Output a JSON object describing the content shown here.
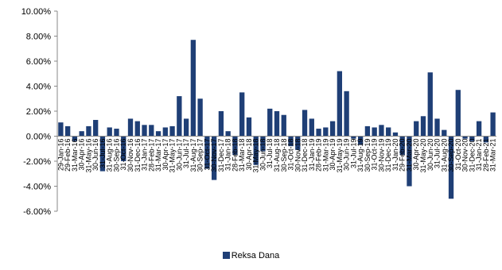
{
  "colors": {
    "bar": "#1f3f76",
    "axis": "#888888",
    "text": "#000000"
  },
  "chart_data": {
    "type": "bar",
    "title": "",
    "xlabel": "",
    "ylabel": "",
    "ylim": [
      -0.06,
      0.1
    ],
    "yticks": [
      "-6.00%",
      "-4.00%",
      "-2.00%",
      "0.00%",
      "2.00%",
      "4.00%",
      "6.00%",
      "8.00%",
      "10.00%"
    ],
    "yticks_values": [
      -0.06,
      -0.04,
      -0.02,
      0.0,
      0.02,
      0.04,
      0.06,
      0.08,
      0.1
    ],
    "grid": false,
    "legend": {
      "position": "bottom",
      "entries": [
        "Reksa Dana"
      ]
    },
    "categories": [
      "29-Jan-16",
      "29-Feb-16",
      "31-Mar-16",
      "30-Apr-16",
      "31-May-16",
      "30-Jun-16",
      "31-Jul-16",
      "31-Aug-16",
      "30-Sep-16",
      "31-Oct-16",
      "30-Nov-16",
      "31-Dec-16",
      "31-Jan-17",
      "28-Feb-17",
      "31-Mar-17",
      "30-Apr-17",
      "31-May-17",
      "30-Jun-17",
      "31-Jul-17",
      "31-Aug-17",
      "30-Sep-17",
      "31-Oct-17",
      "30-Nov-17",
      "31-Dec-17",
      "31-Jan-18",
      "28-Feb-18",
      "31-Mar-18",
      "30-Apr-18",
      "31-May-18",
      "30-Jun-18",
      "31-Jul-18",
      "31-Aug-18",
      "30-Sep-18",
      "31-Oct-18",
      "30-Nov-18",
      "31-Dec-18",
      "31-Jan-19",
      "28-Feb-19",
      "31-Mar-19",
      "30-Apr-19",
      "31-May-19",
      "30-Jun-19",
      "31-Jul-19",
      "31-Aug-19",
      "30-Sep-19",
      "31-Oct-19",
      "30-Nov-19",
      "31-Dec-19",
      "31-Jan-20",
      "29-Feb-20",
      "31-Mar-20",
      "30-Apr-20",
      "31-May-20",
      "30-Jun-20",
      "31-Jul-20",
      "31-Aug-20",
      "30-Sep-20",
      "31-Oct-20",
      "30-Nov-20",
      "31-Dec-20",
      "31-Jan-21",
      "28-Feb-21",
      "31-Mar-21"
    ],
    "series": [
      {
        "name": "Reksa Dana",
        "values": [
          0.011,
          0.008,
          -0.004,
          0.004,
          0.008,
          0.013,
          -0.028,
          0.007,
          0.006,
          -0.02,
          0.014,
          0.012,
          0.009,
          0.009,
          0.004,
          0.007,
          0.008,
          0.032,
          0.014,
          0.077,
          0.03,
          -0.026,
          -0.035,
          0.02,
          0.004,
          -0.015,
          0.035,
          0.015,
          -0.023,
          -0.012,
          0.022,
          0.02,
          0.017,
          -0.008,
          -0.011,
          0.021,
          0.014,
          0.006,
          0.007,
          0.012,
          0.052,
          0.036,
          -0.002,
          -0.007,
          0.008,
          0.007,
          0.009,
          0.007,
          0.003,
          -0.015,
          -0.04,
          0.012,
          0.016,
          0.051,
          0.014,
          0.005,
          -0.05,
          0.037,
          -0.002,
          -0.004,
          0.012,
          -0.005,
          0.019
        ]
      }
    ]
  }
}
